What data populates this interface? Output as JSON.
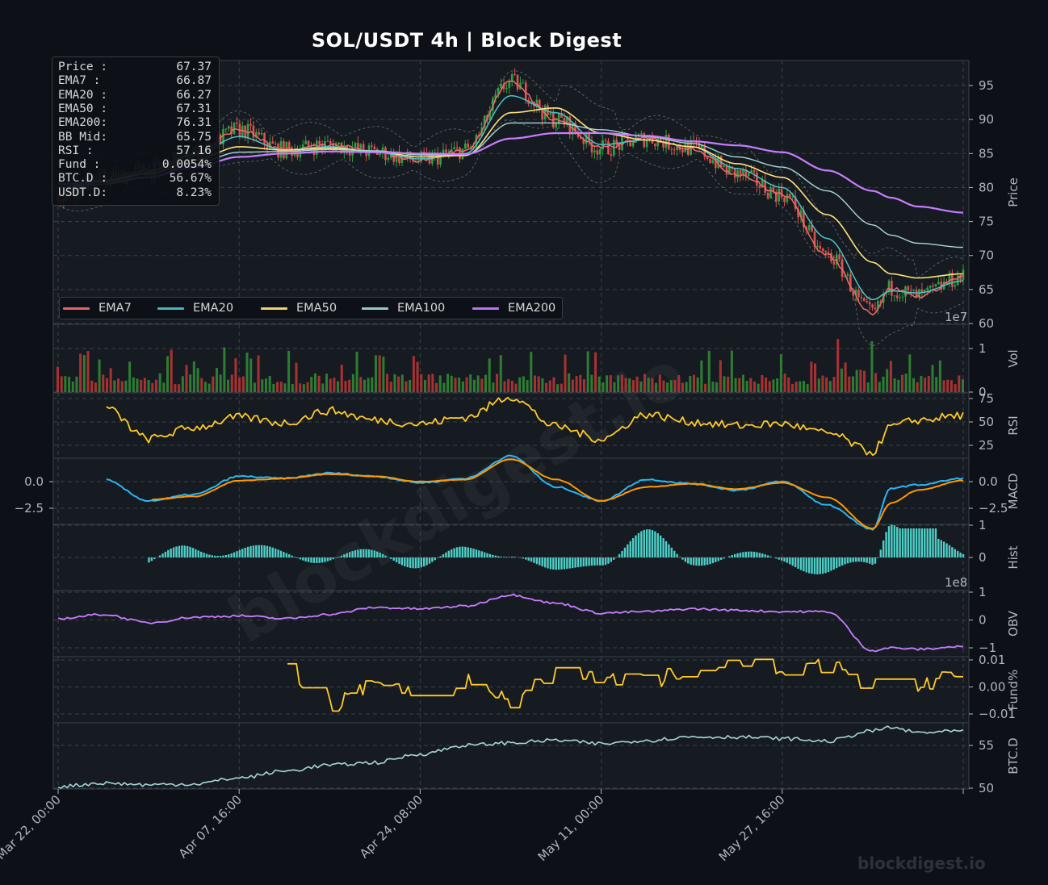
{
  "title": "SOL/USDT  4h  |  Block Digest",
  "watermark_diagonal": "blockdigest.io",
  "watermark_corner": "blockdigest.io",
  "colors": {
    "background": "#0d1117",
    "panel": "#161b22",
    "grid": "#3a4048",
    "axis_text": "#b0b6be",
    "ema7": "#ef6b6b",
    "ema20": "#4fc3c8",
    "ema50": "#ffe27a",
    "ema100": "#a9d6d6",
    "ema200": "#c77dff",
    "rsi": "#ffca28",
    "macd": "#29b6f6",
    "signal": "#ff9800",
    "hist": "#4dd0c8",
    "obv": "#c77dff",
    "funding": "#ffca28",
    "btcd": "#a9d6d6",
    "vol_up": "#2e7d32",
    "vol_down": "#a83232"
  },
  "info_box": [
    {
      "label": "Price :",
      "value": "67.37"
    },
    {
      "label": "EMA7  :",
      "value": "66.87"
    },
    {
      "label": "EMA20 :",
      "value": "66.27"
    },
    {
      "label": "EMA50 :",
      "value": "67.31"
    },
    {
      "label": "EMA200:",
      "value": "76.31"
    },
    {
      "label": "BB Mid:",
      "value": "65.75"
    },
    {
      "label": "RSI   :",
      "value": "57.16"
    },
    {
      "label": "Fund  :",
      "value": "0.0054%"
    },
    {
      "label": "BTC.D :",
      "value": "56.67%"
    },
    {
      "label": "USDT.D:",
      "value": "8.23%"
    }
  ],
  "legend": [
    "EMA7",
    "EMA20",
    "EMA50",
    "EMA100",
    "EMA200"
  ],
  "chart_data": {
    "type": "line",
    "x_ticks": [
      "Mar 22, 00:00",
      "Apr 07, 16:00",
      "Apr 24, 08:00",
      "May 11, 00:00",
      "May 27, 16:00"
    ],
    "series_x": [
      0,
      0.05,
      0.1,
      0.15,
      0.2,
      0.25,
      0.3,
      0.35,
      0.4,
      0.45,
      0.5,
      0.55,
      0.6,
      0.65,
      0.7,
      0.75,
      0.8,
      0.85,
      0.9,
      0.92,
      0.95,
      1.0
    ],
    "panels": [
      {
        "name": "price",
        "ylabel": "Price",
        "ylim": [
          60,
          99
        ],
        "yticks": [
          60,
          65,
          70,
          75,
          80,
          85,
          90,
          95
        ],
        "offset_label": "1e7",
        "series": [
          {
            "name": "EMA7",
            "values": [
              79,
              81.2,
              82.5,
              85,
              88.5,
              85.5,
              86.3,
              85.2,
              84,
              85.5,
              95.5,
              90,
              85.8,
              87.2,
              85.8,
              82,
              79,
              70,
              61.5,
              65.2,
              64,
              66.87
            ]
          },
          {
            "name": "EMA20",
            "values": [
              79,
              81,
              82.3,
              84.8,
              87.5,
              85.5,
              86,
              85.2,
              84.2,
              85,
              93.5,
              91,
              86.3,
              87,
              86,
              82.8,
              80,
              72.5,
              63.5,
              64.8,
              64.5,
              66.27
            ]
          },
          {
            "name": "EMA50",
            "values": [
              80,
              81,
              82,
              84,
              86,
              85.5,
              85.8,
              85.3,
              84.5,
              84.7,
              91,
              91.7,
              88,
              87,
              86,
              83.5,
              81.5,
              76,
              69,
              67.3,
              66.7,
              67.31
            ]
          },
          {
            "name": "EMA100",
            "values": [
              80,
              80.5,
              81.5,
              83.5,
              85.2,
              85.3,
              85.6,
              85.4,
              84.8,
              84.8,
              89.5,
              89.5,
              88.5,
              87.5,
              86.5,
              84.5,
              83,
              79.5,
              74.5,
              73,
              71.8,
              71.2
            ]
          },
          {
            "name": "EMA200",
            "values": [
              80.5,
              80.8,
              81.5,
              83,
              84.5,
              85,
              85.3,
              85.2,
              85,
              84.9,
              87.2,
              88,
              88,
              87.6,
              86.8,
              86.2,
              85.2,
              82.5,
              79.5,
              78.5,
              77.2,
              76.31
            ]
          }
        ]
      },
      {
        "name": "volume",
        "ylabel": "Vol",
        "ylim": [
          0,
          1.35
        ],
        "yticks": [
          0,
          1
        ],
        "offset_label": "1e8"
      },
      {
        "name": "rsi",
        "ylabel": "RSI",
        "ylim": [
          5,
          80
        ],
        "yticks": [
          25,
          50,
          75
        ],
        "series": [
          {
            "name": "RSI",
            "values": [
              null,
              66,
              32,
              44,
              55,
              49,
              62,
              52,
              48,
              55,
              77,
              45,
              32,
              58,
              50,
              46,
              48,
              38,
              18,
              45,
              52,
              57.16
            ]
          }
        ]
      },
      {
        "name": "macd",
        "ylabel": "MACD",
        "ylim": [
          -4.8,
          2.5
        ],
        "yticks": [
          -2.5,
          0.0
        ],
        "series": [
          {
            "name": "MACD",
            "values": [
              null,
              0.2,
              -1.8,
              -1.2,
              0.5,
              0.3,
              0.8,
              0.5,
              -0.1,
              0.3,
              2.4,
              -0.5,
              -1.8,
              0.2,
              -0.2,
              -0.8,
              0,
              -2.2,
              -4.5,
              -0.6,
              -0.3,
              0.3
            ]
          },
          {
            "name": "Signal",
            "values": [
              null,
              null,
              -1.7,
              -1.4,
              0.1,
              0.3,
              0.7,
              0.5,
              0,
              0.2,
              2.1,
              0.2,
              -1.8,
              -0.5,
              -0.2,
              -0.7,
              -0.1,
              -1.5,
              -4.4,
              -2,
              -0.8,
              0.1
            ]
          }
        ]
      },
      {
        "name": "hist",
        "ylabel": "Hist",
        "ylim": [
          -1.1,
          1.2
        ],
        "yticks": [
          0,
          1
        ]
      },
      {
        "name": "obv",
        "ylabel": "OBV",
        "ylim": [
          -1.2,
          1.2
        ],
        "yticks": [
          -1,
          0,
          1
        ],
        "series": [
          {
            "name": "OBV",
            "values": [
              0.05,
              0.2,
              -0.1,
              0.1,
              0.15,
              0.05,
              0.2,
              0.45,
              0.4,
              0.5,
              0.9,
              0.6,
              0.25,
              0.3,
              0.4,
              0.35,
              0.3,
              0.3,
              -1.1,
              -1.0,
              -1.05,
              -0.95
            ]
          }
        ]
      },
      {
        "name": "funding",
        "ylabel": "Fund%",
        "ylim": [
          -0.012,
          0.012
        ],
        "yticks": [
          -0.01,
          0.0,
          0.01
        ],
        "series": [
          {
            "name": "Fund",
            "values": [
              null,
              null,
              null,
              null,
              null,
              0.007,
              -0.006,
              0.0,
              -0.002,
              0.003,
              -0.005,
              0.005,
              0.004,
              0.002,
              0.006,
              0.009,
              0.007,
              0.008,
              0.0,
              0.001,
              0.0,
              0.0054
            ]
          }
        ]
      },
      {
        "name": "btcd",
        "ylabel": "BTC.D",
        "ylim": [
          49.5,
          57.5
        ],
        "yticks": [
          50,
          55
        ],
        "series": [
          {
            "name": "BTC.D",
            "values": [
              50.2,
              50.6,
              50.4,
              50.5,
              51.2,
              52,
              52.7,
              53,
              54,
              55,
              55.3,
              55.6,
              55.2,
              55.6,
              56,
              56,
              55.8,
              55.5,
              56.7,
              57.1,
              56.5,
              56.67
            ]
          }
        ]
      }
    ]
  }
}
